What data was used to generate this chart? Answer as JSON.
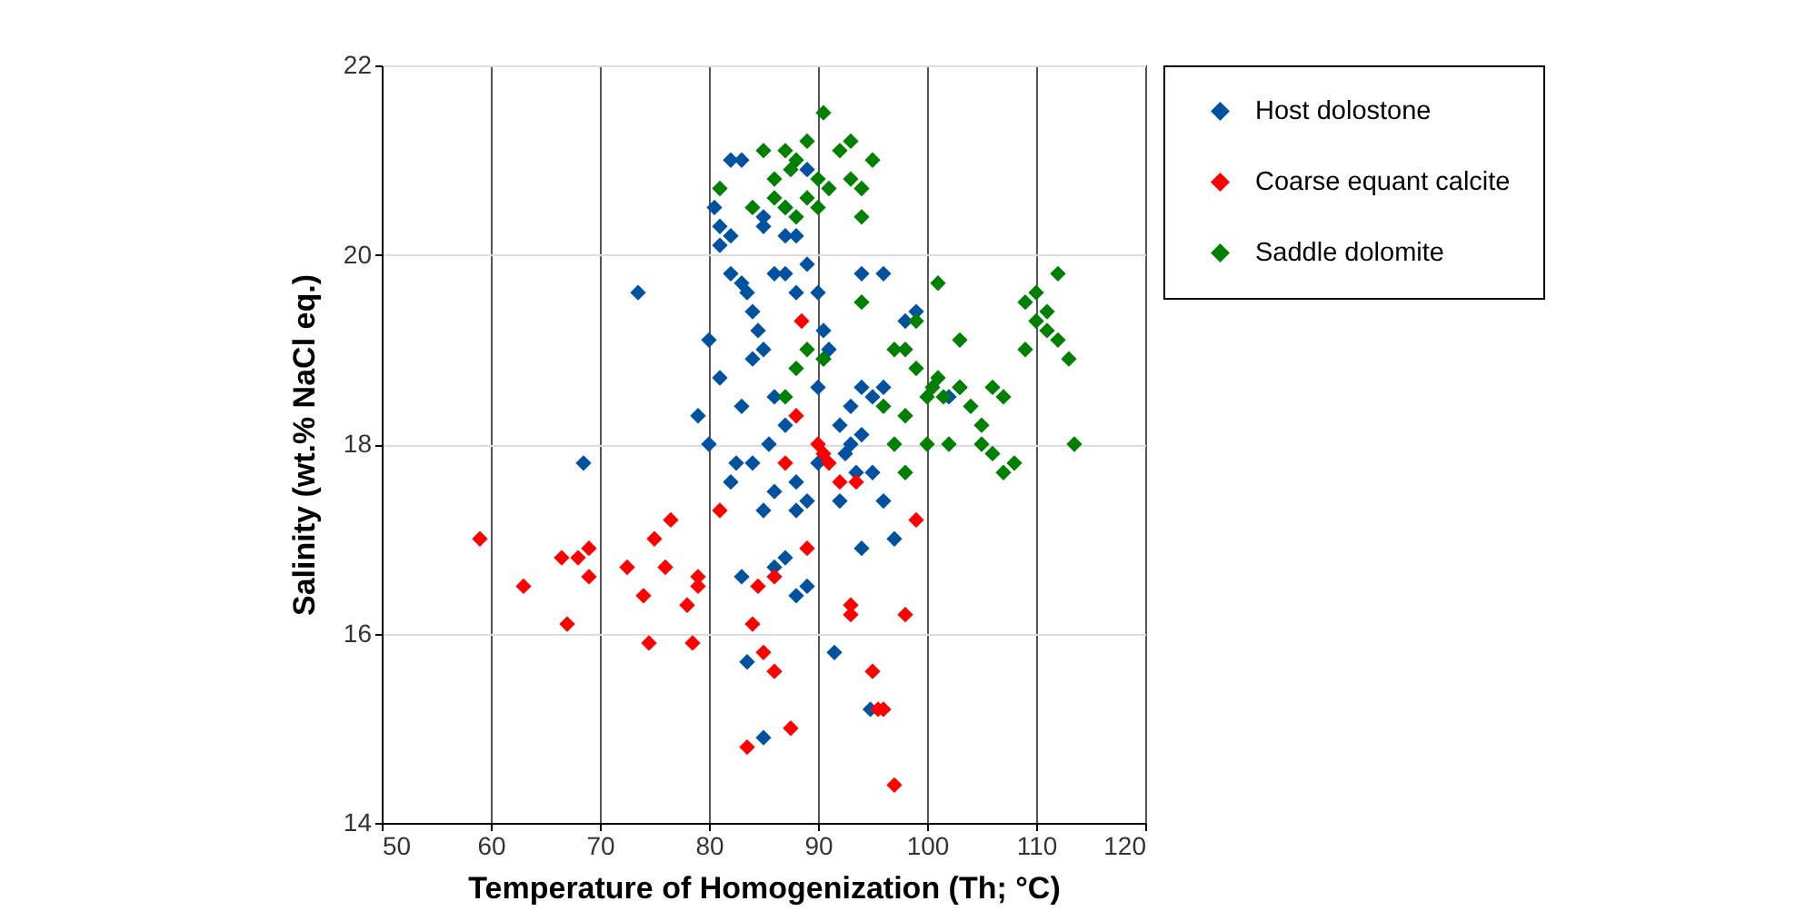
{
  "chart_data": {
    "type": "scatter",
    "xlabel": "Temperature of Homogenization (Th; °C)",
    "ylabel": "Salinity (wt.% NaCl eq.)",
    "xlim": [
      50,
      120
    ],
    "ylim": [
      14,
      22
    ],
    "xticks": [
      50,
      60,
      70,
      80,
      90,
      100,
      110,
      120
    ],
    "yticks": [
      14,
      16,
      18,
      20,
      22
    ],
    "grid": true,
    "legend": "top right",
    "marker": "diamond",
    "series": [
      {
        "name": "Host dolostone",
        "color": "#0052a0",
        "x": [
          68.5,
          73.5,
          80.5,
          81,
          81,
          80,
          81,
          80,
          79,
          82,
          82,
          83,
          83.5,
          84,
          84.5,
          85,
          83,
          85,
          84,
          83,
          82.5,
          82,
          84,
          85,
          86,
          85.5,
          86,
          87,
          88,
          88,
          89,
          87,
          88,
          89,
          86,
          83,
          83.5,
          85,
          87,
          87,
          86,
          87,
          88,
          89,
          90,
          90.5,
          91,
          90,
          90.5,
          92,
          92.5,
          93,
          93.5,
          94,
          94,
          93,
          95,
          96,
          96,
          95,
          94,
          94.8,
          91.5,
          97,
          94,
          96,
          98,
          99,
          102,
          103,
          92,
          90,
          85,
          88,
          89,
          82
        ],
        "values": [
          17.8,
          19.6,
          20.5,
          20.3,
          20.1,
          19.1,
          18.7,
          18.0,
          18.3,
          20.2,
          19.8,
          19.7,
          19.6,
          19.4,
          19.2,
          19.0,
          21.0,
          20.3,
          18.9,
          18.4,
          17.8,
          17.6,
          17.8,
          17.3,
          17.5,
          18.0,
          18.5,
          18.2,
          17.3,
          17.6,
          17.4,
          16.8,
          16.4,
          16.5,
          16.7,
          16.6,
          15.7,
          14.9,
          20.2,
          20.5,
          19.8,
          19.8,
          19.6,
          19.9,
          19.6,
          19.2,
          19.0,
          18.6,
          18.9,
          18.2,
          17.9,
          18.0,
          17.7,
          18.1,
          18.6,
          18.4,
          18.5,
          18.6,
          17.4,
          17.7,
          16.9,
          15.2,
          15.8,
          17.0,
          19.8,
          19.8,
          19.3,
          19.4,
          18.5,
          18.6,
          17.4,
          17.8,
          20.4,
          20.2,
          20.9,
          21.0
        ]
      },
      {
        "name": "Coarse equant calcite",
        "color": "#ff0000",
        "x": [
          59,
          63,
          66.5,
          67,
          68,
          69,
          69,
          72.5,
          74,
          74.5,
          75,
          76,
          76.5,
          78,
          78.5,
          79,
          79,
          81,
          83.5,
          84,
          84.5,
          85,
          86,
          86,
          87,
          87.5,
          88,
          88.5,
          89,
          90,
          90.5,
          91,
          92,
          93,
          93,
          93.5,
          95,
          95.5,
          96,
          97,
          98,
          99
        ],
        "values": [
          17.0,
          16.5,
          16.8,
          16.1,
          16.8,
          16.9,
          16.6,
          16.7,
          16.4,
          15.9,
          17.0,
          16.7,
          17.2,
          16.3,
          15.9,
          16.6,
          16.5,
          17.3,
          14.8,
          16.1,
          16.5,
          15.8,
          15.6,
          16.6,
          17.8,
          15.0,
          18.3,
          19.3,
          16.9,
          18.0,
          17.9,
          17.8,
          17.6,
          16.3,
          16.2,
          17.6,
          15.6,
          15.2,
          15.2,
          14.4,
          16.2,
          17.2
        ]
      },
      {
        "name": "Saddle dolomite",
        "color": "#008000",
        "x": [
          90.5,
          85,
          86,
          87,
          87.5,
          88,
          89,
          90,
          92,
          93,
          93,
          94,
          95,
          91,
          86,
          87,
          88,
          89,
          90,
          94,
          81,
          84,
          89,
          90.5,
          94,
          97,
          98,
          99,
          98,
          99,
          100,
          100.5,
          101,
          101.5,
          101,
          103,
          103,
          102,
          104,
          105,
          105,
          106,
          107,
          107,
          108,
          106,
          109,
          110,
          110,
          111,
          111,
          112,
          112,
          113,
          113.5,
          109,
          100,
          97,
          98,
          87,
          88,
          96
        ],
        "values": [
          21.5,
          21.1,
          20.8,
          21.1,
          20.9,
          21.0,
          21.2,
          20.8,
          21.1,
          21.2,
          20.8,
          20.7,
          21.0,
          20.7,
          20.6,
          20.5,
          20.4,
          20.6,
          20.5,
          20.4,
          20.7,
          20.5,
          19.0,
          18.9,
          19.5,
          19.0,
          18.3,
          18.8,
          19.0,
          19.3,
          18.5,
          18.6,
          18.7,
          18.5,
          19.7,
          19.1,
          18.6,
          18.0,
          18.4,
          18.2,
          18.0,
          17.9,
          17.7,
          18.5,
          17.8,
          18.6,
          19.5,
          19.6,
          19.3,
          19.4,
          19.2,
          19.8,
          19.1,
          18.9,
          18.0,
          19.0,
          18.0,
          18.0,
          17.7,
          18.5,
          18.8,
          18.4
        ]
      }
    ]
  }
}
